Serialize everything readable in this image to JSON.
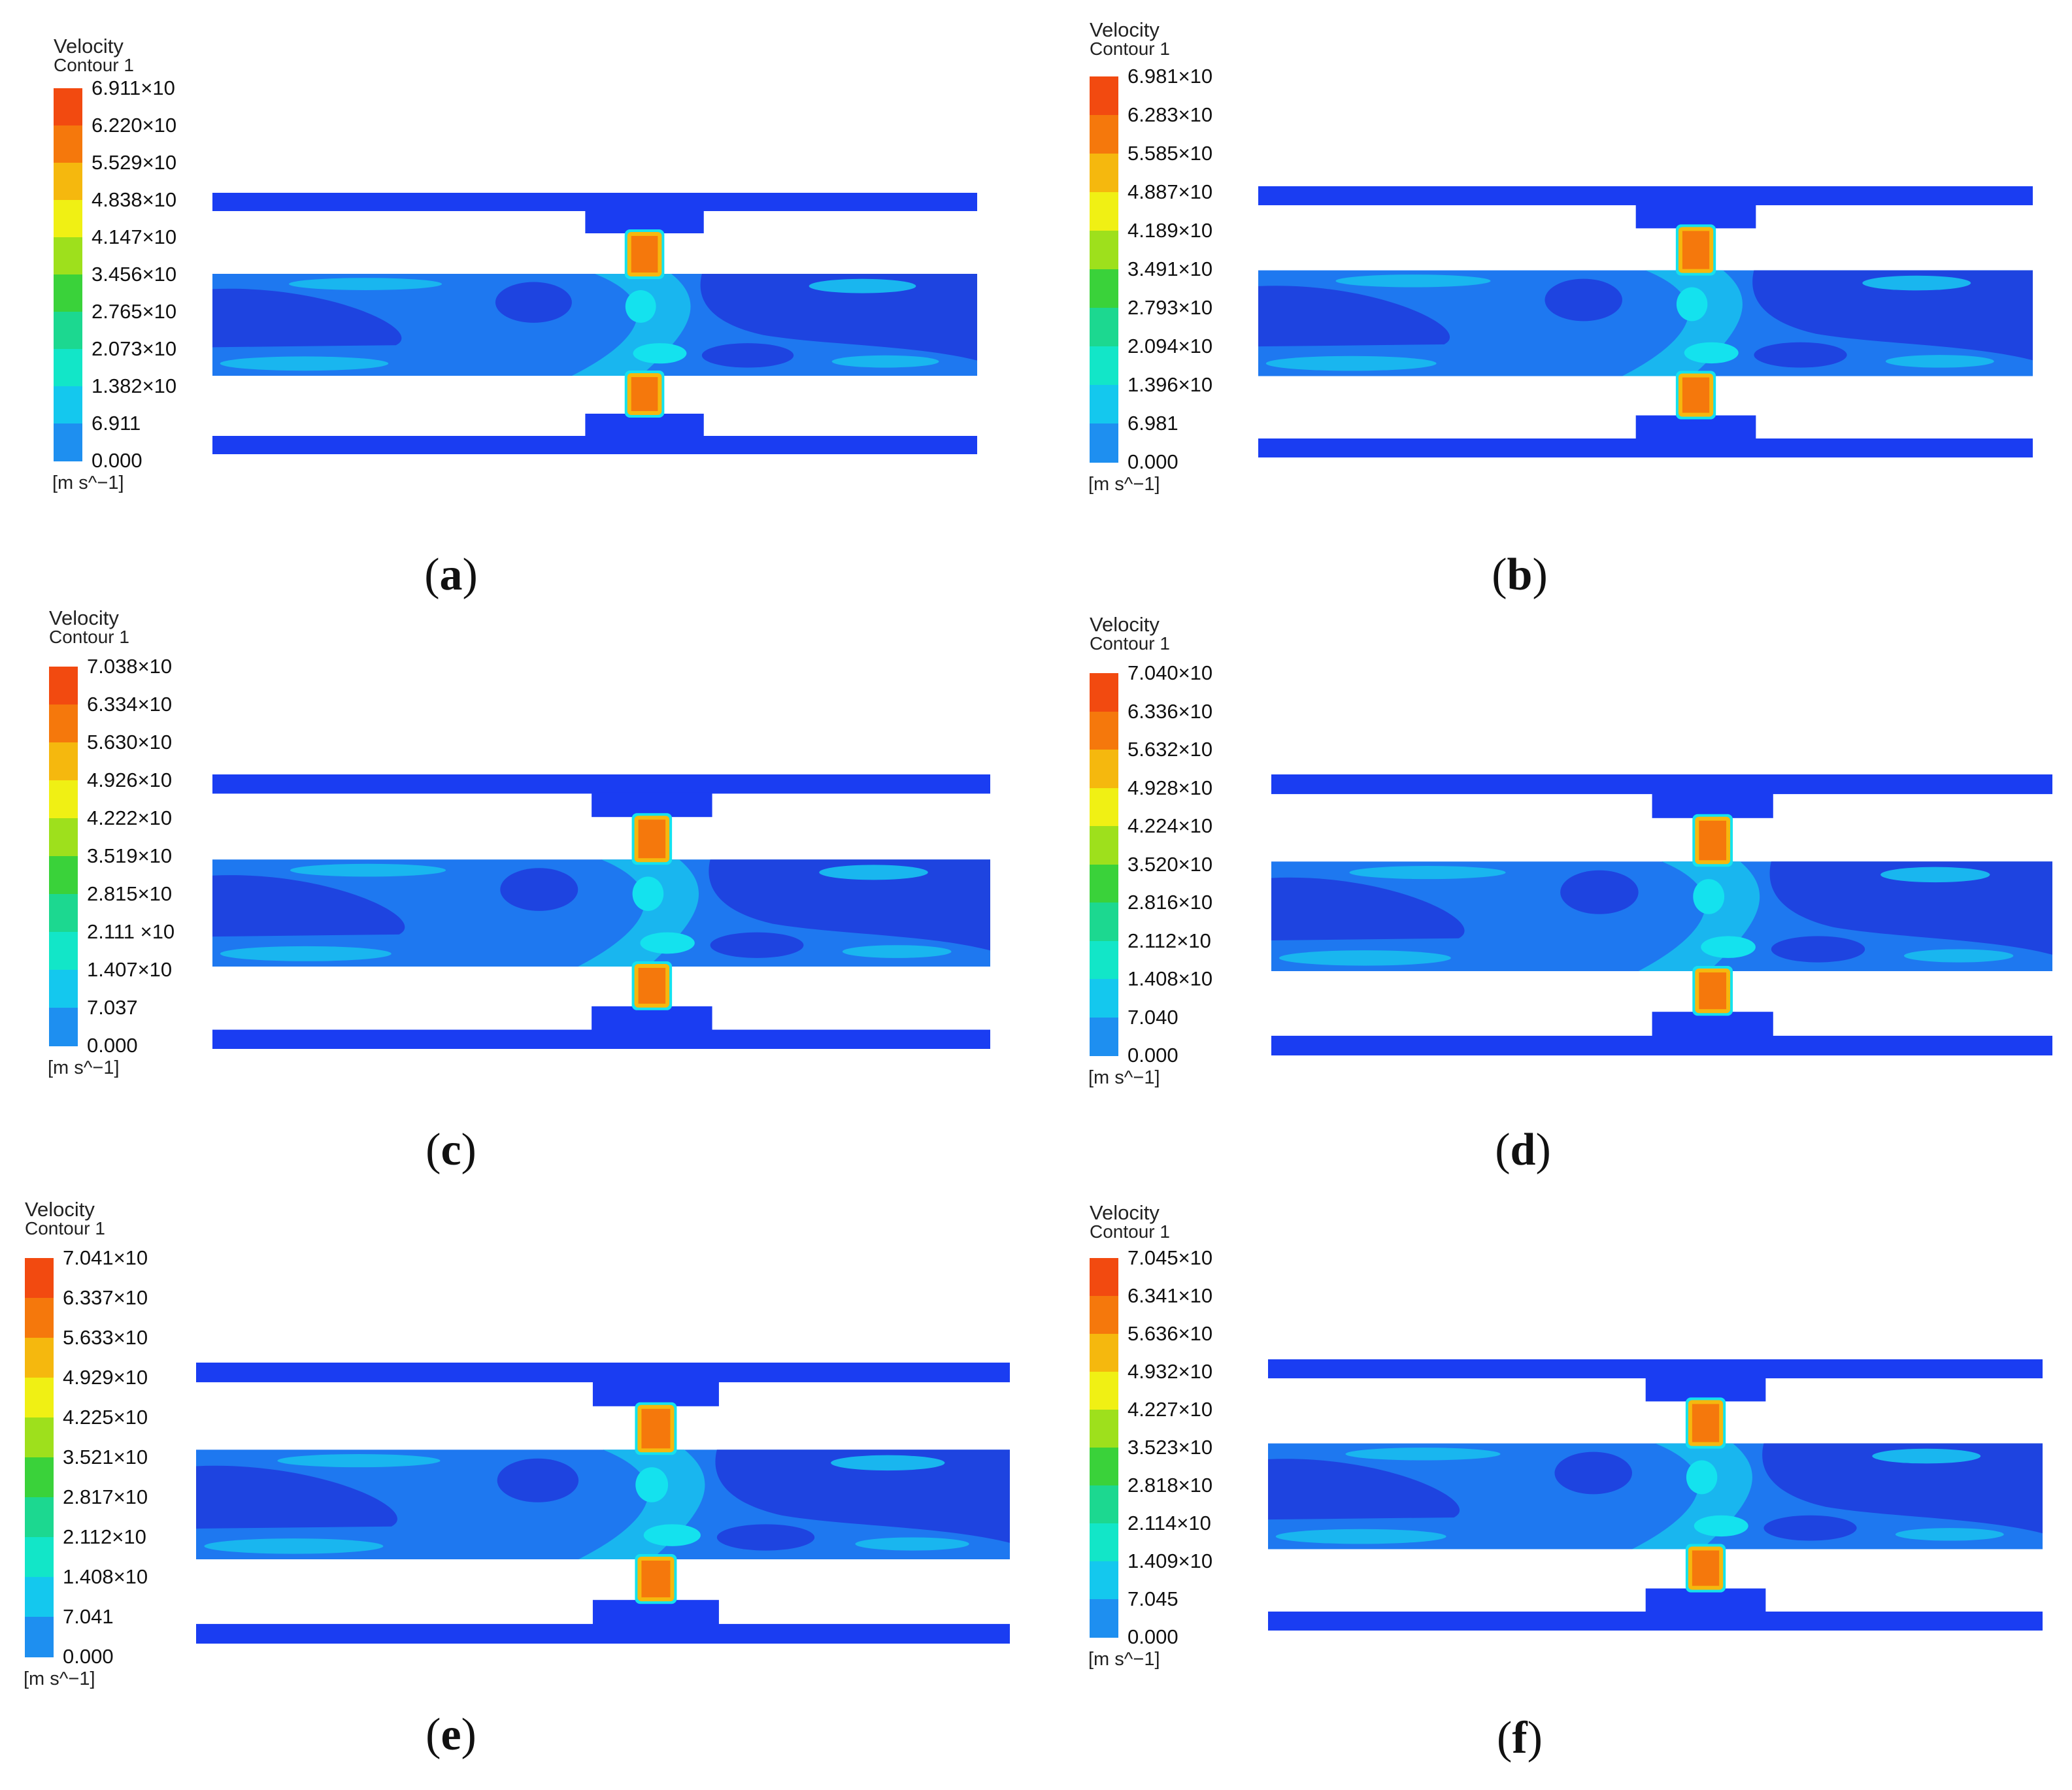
{
  "colors": {
    "scale": [
      "#1a2bf0",
      "#1e8ff0",
      "#14c8ee",
      "#12e6c8",
      "#1cd890",
      "#3ad23a",
      "#9ee01c",
      "#f0f014",
      "#f5b80e",
      "#f5780c",
      "#f24a10"
    ],
    "fluid_dark": "#1e44e0",
    "fluid_mid": "#1e78f0",
    "fluid_light": "#19b6ef",
    "fluid_cyan": "#14e2ee",
    "wall": "#1a3df2"
  },
  "panels": [
    {
      "title": "Velocity",
      "subtitle": "Contour 1",
      "unit": "[m s^−1]",
      "caption_open": "(",
      "caption_letter": "a",
      "caption_close": ")",
      "ticks": [
        "6.911×10",
        "6.220×10",
        "5.529×10",
        "4.838×10",
        "4.147×10",
        "3.456×10",
        "2.765×10",
        "2.073×10",
        "1.382×10",
        "6.911",
        "0.000"
      ]
    },
    {
      "title": "Velocity",
      "subtitle": "Contour 1",
      "unit": "[m s^−1]",
      "caption_open": "(",
      "caption_letter": "b",
      "caption_close": ")",
      "ticks": [
        "6.981×10",
        "6.283×10",
        "5.585×10",
        "4.887×10",
        "4.189×10",
        "3.491×10",
        "2.793×10",
        "2.094×10",
        "1.396×10",
        "6.981",
        "0.000"
      ]
    },
    {
      "title": "Velocity",
      "subtitle": "Contour 1",
      "unit": "[m s^−1]",
      "caption_open": "(",
      "caption_letter": "c",
      "caption_close": ")",
      "ticks": [
        "7.038×10",
        "6.334×10",
        "5.630×10",
        "4.926×10",
        "4.222×10",
        "3.519×10",
        "2.815×10",
        "2.111 ×10",
        "1.407×10",
        "7.037",
        "0.000"
      ]
    },
    {
      "title": "Velocity",
      "subtitle": "Contour 1",
      "unit": "[m s^−1]",
      "caption_open": "(",
      "caption_letter": "d",
      "caption_close": ")",
      "ticks": [
        "7.040×10",
        "6.336×10",
        "5.632×10",
        "4.928×10",
        "4.224×10",
        "3.520×10",
        "2.816×10",
        "2.112×10",
        "1.408×10",
        "7.040",
        "0.000"
      ]
    },
    {
      "title": "Velocity",
      "subtitle": "Contour 1",
      "unit": "[m s^−1]",
      "caption_open": "(",
      "caption_letter": "e",
      "caption_close": ")",
      "ticks": [
        "7.041×10",
        "6.337×10",
        "5.633×10",
        "4.929×10",
        "4.225×10",
        "3.521×10",
        "2.817×10",
        "2.112×10",
        "1.408×10",
        "7.041",
        "0.000"
      ]
    },
    {
      "title": "Velocity",
      "subtitle": "Contour 1",
      "unit": "[m s^−1]",
      "caption_open": "(",
      "caption_letter": "f",
      "caption_close": ")",
      "ticks": [
        "7.045×10",
        "6.341×10",
        "5.636×10",
        "4.932×10",
        "4.227×10",
        "3.523×10",
        "2.818×10",
        "2.114×10",
        "1.409×10",
        "7.045",
        "0.000"
      ]
    }
  ]
}
